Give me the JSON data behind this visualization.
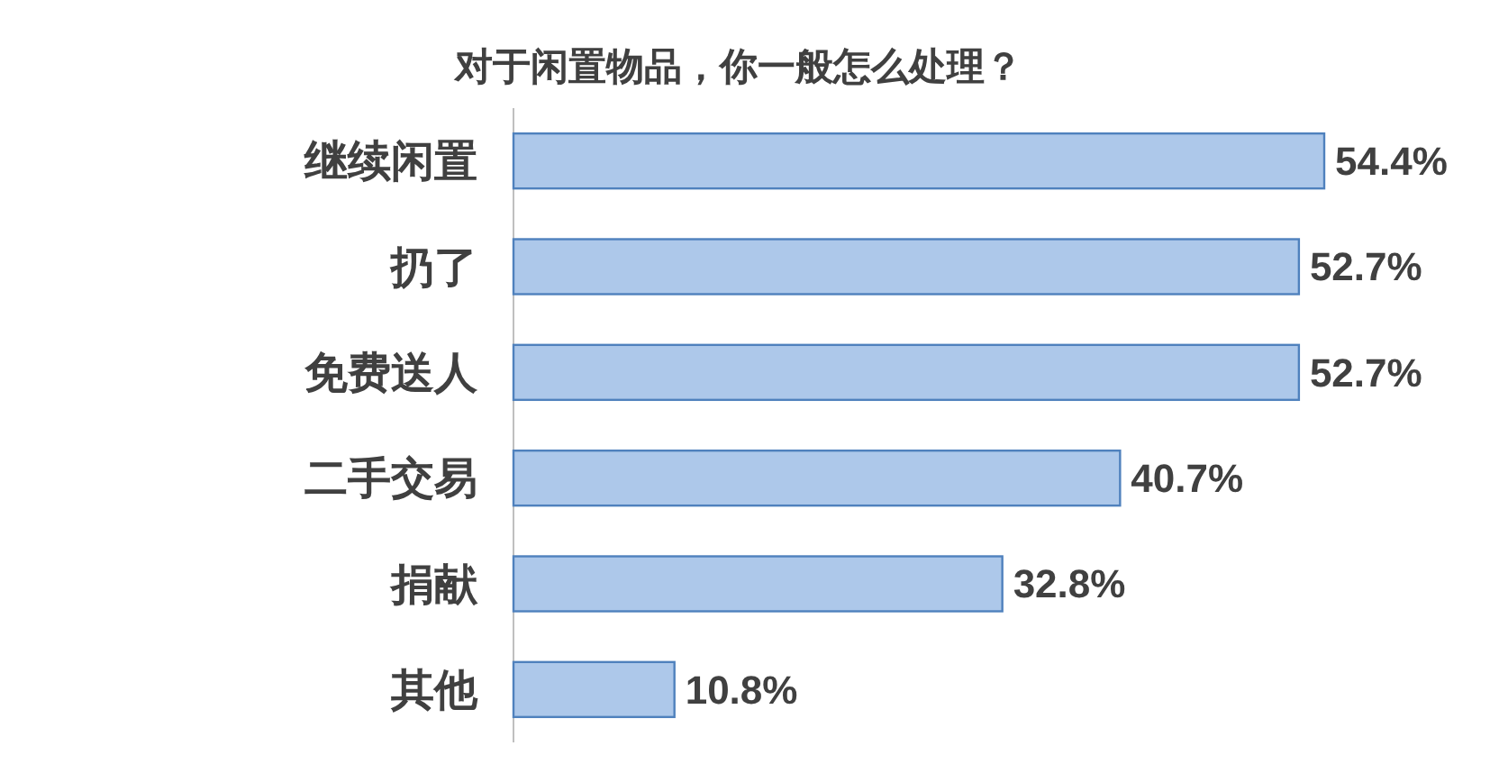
{
  "chart_data": {
    "type": "bar",
    "orientation": "horizontal",
    "title": "对于闲置物品，你一般怎么处理？",
    "categories": [
      "继续闲置",
      "扔了",
      "免费送人",
      "二手交易",
      "捐献",
      "其他"
    ],
    "values": [
      54.4,
      52.7,
      52.7,
      40.7,
      32.8,
      10.8
    ],
    "value_labels": [
      "54.4%",
      "52.7%",
      "52.7%",
      "40.7%",
      "32.8%",
      "10.8%"
    ],
    "color": "#adc8ea"
  }
}
